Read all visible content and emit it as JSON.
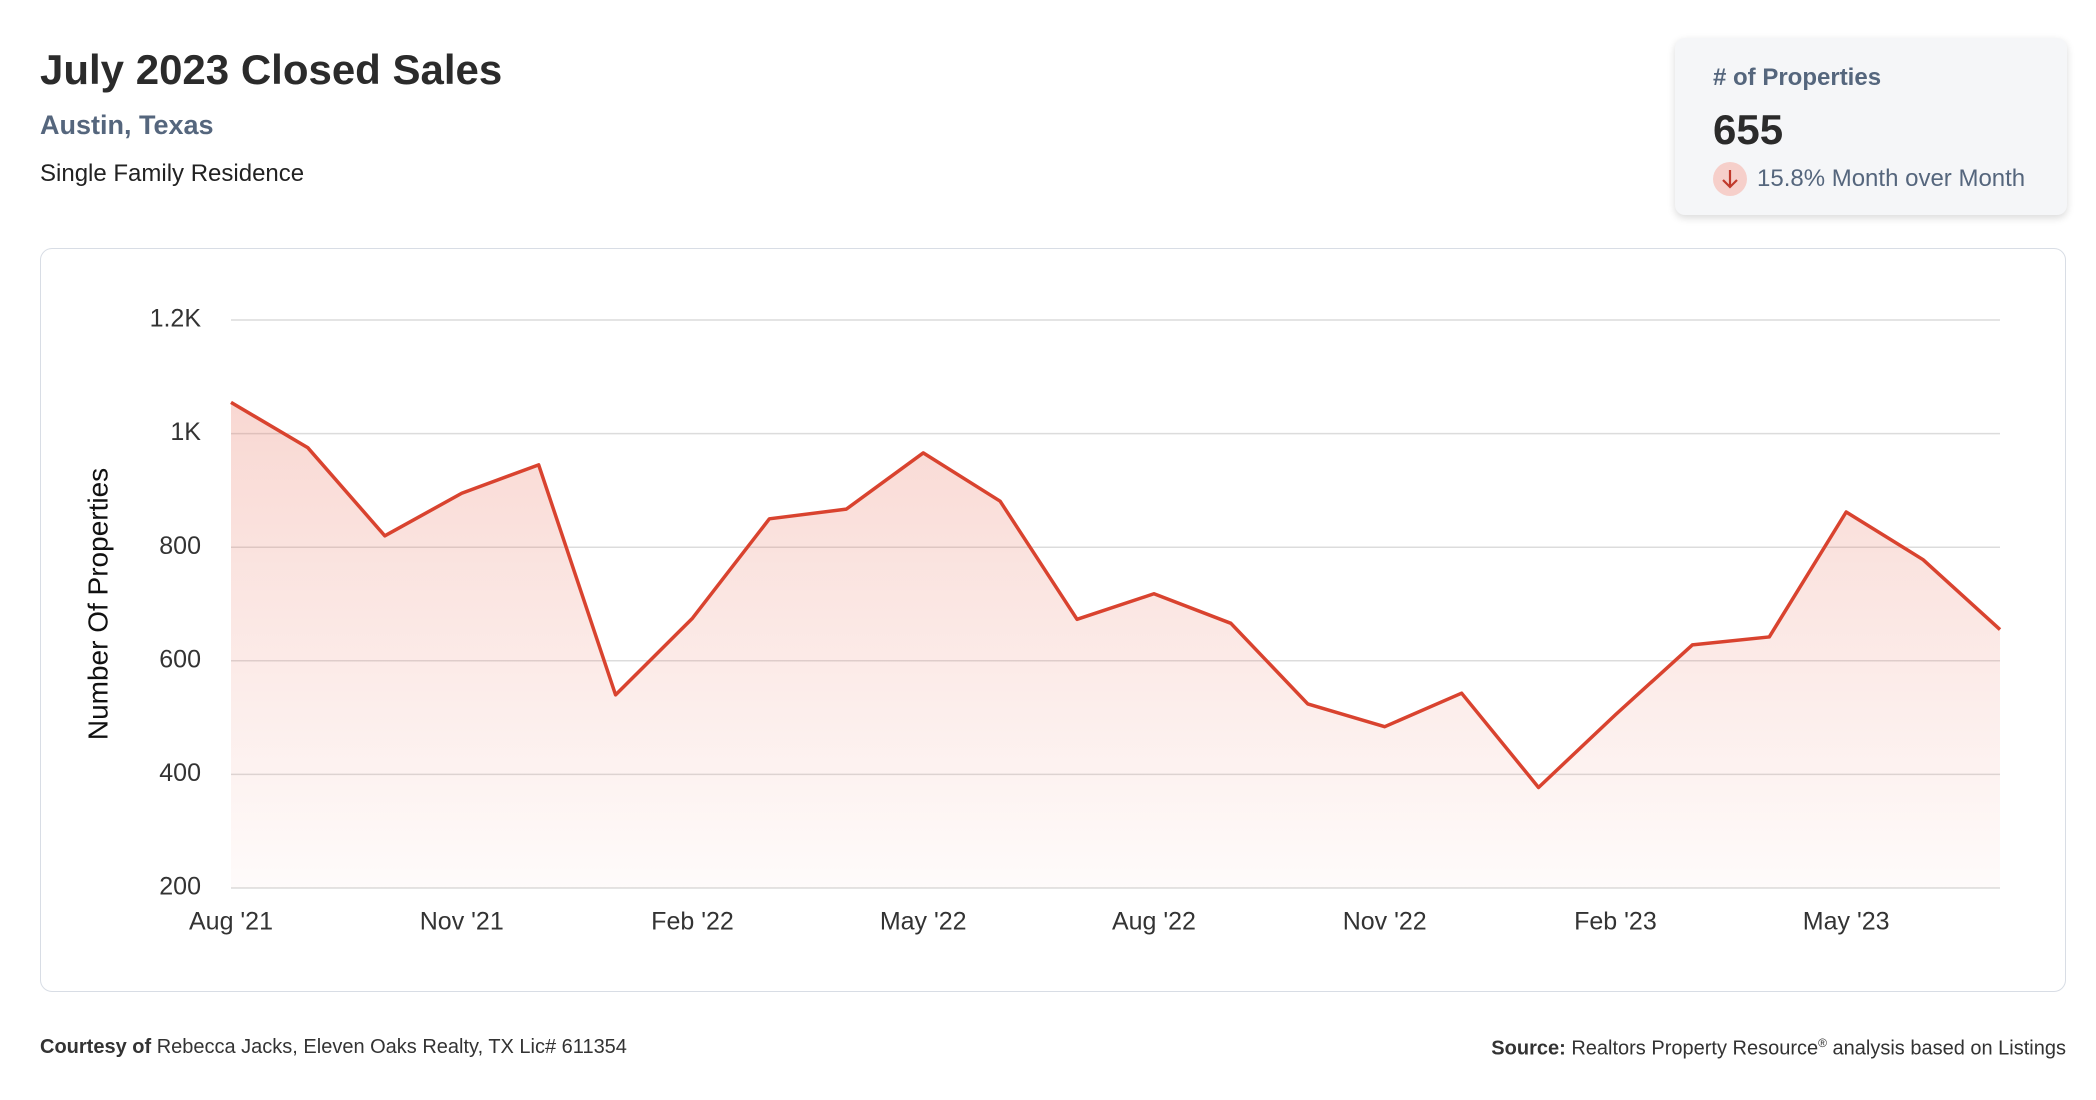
{
  "header": {
    "title": "July 2023 Closed Sales",
    "location": "Austin, Texas",
    "property_type": "Single Family Residence"
  },
  "card": {
    "label": "# of Properties",
    "value": "655",
    "change": "15.8% Month over Month"
  },
  "chart_data": {
    "type": "line",
    "y_label": "Number Of Properties",
    "categories": [
      "Aug '21",
      null,
      null,
      "Nov '21",
      null,
      null,
      "Feb '22",
      null,
      null,
      "May '22",
      null,
      null,
      "Aug '22",
      null,
      null,
      "Nov '22",
      null,
      null,
      "Feb '23",
      null,
      null,
      "May '23",
      null,
      null
    ],
    "values": [
      1055,
      975,
      820,
      895,
      945,
      540,
      675,
      850,
      867,
      966,
      881,
      673,
      718,
      666,
      524,
      484,
      543,
      377,
      505,
      628,
      642,
      862,
      778,
      655
    ],
    "color": "#d9432f",
    "ylim": [
      200,
      1200
    ],
    "yticks": [
      200,
      400,
      600,
      800,
      {
        "value": 1000,
        "label": "1K"
      },
      {
        "value": 1200,
        "label": "1.2K"
      }
    ],
    "grid": true
  },
  "footer": {
    "courtesy_label": "Courtesy of",
    "courtesy": "Rebecca Jacks, Eleven Oaks Realty, TX Lic# 611354",
    "source_label": "Source:",
    "source": "Realtors Property Resource",
    "source_mark": "®",
    "source_rest": "analysis based on Listings"
  }
}
